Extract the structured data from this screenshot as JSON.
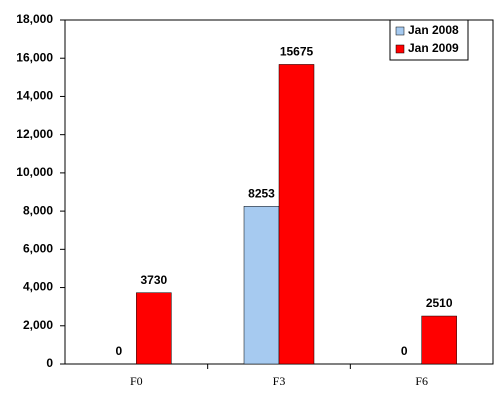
{
  "chart_data": {
    "type": "bar",
    "categories": [
      "F0",
      "F3",
      "F6"
    ],
    "series": [
      {
        "name": "Jan 2008",
        "color": "#a6caf0",
        "values": [
          0,
          8253,
          0
        ]
      },
      {
        "name": "Jan 2009",
        "color": "#ff0000",
        "values": [
          3730,
          15675,
          2510
        ]
      }
    ],
    "ylim": [
      0,
      18000
    ],
    "yticks": [
      0,
      {
        "value": 2000,
        "label": "2,000"
      },
      {
        "value": 4000,
        "label": "4,000"
      },
      {
        "value": 6000,
        "label": "6,000"
      },
      {
        "value": 8000,
        "label": "8,000"
      },
      {
        "value": 10000,
        "label": "10,000"
      },
      {
        "value": 12000,
        "label": "12,000"
      },
      {
        "value": 14000,
        "label": "14,000"
      },
      {
        "value": 16000,
        "label": "16,000"
      },
      {
        "value": 18000,
        "label": "18,000"
      }
    ],
    "grid": false,
    "legend": "top-right"
  }
}
